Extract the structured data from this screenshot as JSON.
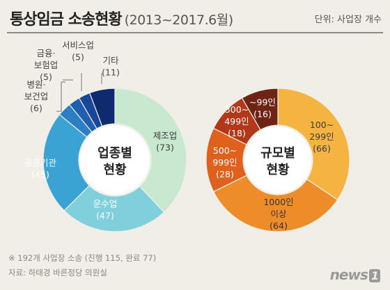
{
  "header": {
    "title": "통상임금 소송현황",
    "subtitle": "(2013~2017.6월)",
    "unit": "단위: 사업장 개수"
  },
  "chart_data": [
    {
      "type": "pie",
      "center_label": [
        "업종별",
        "현황"
      ],
      "slices": [
        {
          "label": [
            "제조업"
          ],
          "value": 73,
          "value_label": "(73)",
          "color": "#c9e8d0"
        },
        {
          "label": [
            "운수업"
          ],
          "value": 47,
          "value_label": "(47)",
          "color": "#7fd0dc"
        },
        {
          "label": [
            "공공기관"
          ],
          "value": 45,
          "value_label": "(45)",
          "color": "#3aa3d4"
        },
        {
          "label": [
            "병원·",
            "보건업"
          ],
          "value": 6,
          "value_label": "(6)",
          "color": "#2c7fc4"
        },
        {
          "label": [
            "금융·",
            "보험업"
          ],
          "value": 5,
          "value_label": "(5)",
          "color": "#1f5fb0"
        },
        {
          "label": [
            "서비스업"
          ],
          "value": 5,
          "value_label": "(5)",
          "color": "#18479a"
        },
        {
          "label": [
            "기타"
          ],
          "value": 11,
          "value_label": "(11)",
          "color": "#0f2a6e"
        }
      ]
    },
    {
      "type": "pie",
      "center_label": [
        "규모별",
        "현황"
      ],
      "slices": [
        {
          "label": [
            "100~",
            "299인"
          ],
          "value": 66,
          "value_label": "(66)",
          "color": "#f5b441"
        },
        {
          "label": [
            "1000인",
            "이상"
          ],
          "value": 64,
          "value_label": "(64)",
          "color": "#ef8c2a"
        },
        {
          "label": [
            "500~",
            "999인"
          ],
          "value": 28,
          "value_label": "(28)",
          "color": "#e0611d"
        },
        {
          "label": [
            "300~",
            "499인"
          ],
          "value": 18,
          "value_label": "(18)",
          "color": "#b3381a"
        },
        {
          "label": [
            "~99인"
          ],
          "value": 16,
          "value_label": "(16)",
          "color": "#6e2414"
        }
      ]
    }
  ],
  "footer": {
    "note": "※ 192개 사업장 소송 (진행 115, 완료 77)",
    "source": "자료: 하태경 바른정당 의원실",
    "logo_text": "news",
    "logo_num": "1"
  }
}
